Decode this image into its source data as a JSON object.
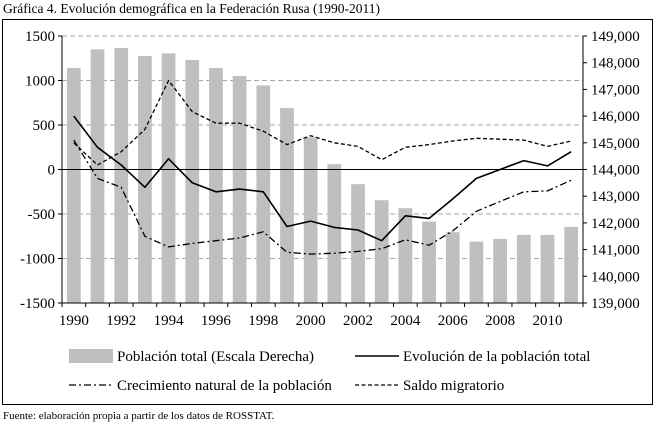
{
  "title": "Gráfica 4. Evolución demográfica en la Federación Rusa (1990-2011)",
  "source": "Fuente: elaboración propia a partir de los datos de ROSSTAT.",
  "chart_data": {
    "type": "bar",
    "title": "Gráfica 4. Evolución demográfica en la Federación Rusa (1990-2011)",
    "categories": [
      "1990",
      "1991",
      "1992",
      "1993",
      "1994",
      "1995",
      "1996",
      "1997",
      "1998",
      "1999",
      "2000",
      "2001",
      "2002",
      "2003",
      "2004",
      "2005",
      "2006",
      "2007",
      "2008",
      "2009",
      "2010",
      "2011"
    ],
    "x_tick_labels": [
      "1990",
      "1992",
      "1994",
      "1996",
      "1998",
      "2000",
      "2002",
      "2004",
      "2006",
      "2008",
      "2010"
    ],
    "y_left": {
      "ylim": [
        -1500,
        1500
      ],
      "ticks": [
        "1500",
        "1000",
        "500",
        "0",
        "-500",
        "-1000",
        "-1500"
      ],
      "tick_values": [
        1500,
        1000,
        500,
        0,
        -500,
        -1000,
        -1500
      ]
    },
    "y_right": {
      "ylim": [
        139000,
        149000
      ],
      "ticks": [
        "149,000",
        "148,000",
        "147,000",
        "146,000",
        "145,000",
        "144,000",
        "143,000",
        "142,000",
        "141,000",
        "140,000",
        "139,000"
      ],
      "tick_values": [
        149000,
        148000,
        147000,
        146000,
        145000,
        144000,
        143000,
        142000,
        141000,
        140000,
        139000
      ]
    },
    "grid": true,
    "legend_position": "bottom",
    "series": [
      {
        "name": "Población total (Escala Derecha)",
        "kind": "bar",
        "axis": "right",
        "color": "#bfbfbf",
        "values": [
          147800,
          148500,
          148550,
          148250,
          148350,
          148100,
          147800,
          147500,
          147150,
          146300,
          145200,
          144200,
          143450,
          142850,
          142550,
          142050,
          141650,
          141300,
          141400,
          141550,
          141550,
          141850
        ]
      },
      {
        "name": "Evolución de la población total",
        "kind": "line",
        "axis": "left",
        "color": "#000000",
        "dash": "solid",
        "values": [
          600,
          250,
          50,
          -200,
          120,
          -150,
          -250,
          -220,
          -250,
          -640,
          -580,
          -650,
          -680,
          -800,
          -520,
          -550,
          -330,
          -100,
          0,
          100,
          40,
          200
        ]
      },
      {
        "name": "Crecimiento natural de la población",
        "kind": "line",
        "axis": "left",
        "color": "#000000",
        "dash": "dashdot",
        "values": [
          330,
          -100,
          -200,
          -750,
          -870,
          -830,
          -800,
          -770,
          -700,
          -930,
          -950,
          -940,
          -920,
          -890,
          -790,
          -850,
          -690,
          -470,
          -360,
          -250,
          -240,
          -120
        ]
      },
      {
        "name": "Saldo migratorio",
        "kind": "line",
        "axis": "left",
        "color": "#000000",
        "dash": "dashed",
        "values": [
          300,
          50,
          200,
          450,
          1000,
          650,
          520,
          520,
          430,
          280,
          380,
          300,
          260,
          110,
          250,
          280,
          320,
          350,
          340,
          330,
          260,
          320
        ]
      }
    ]
  }
}
